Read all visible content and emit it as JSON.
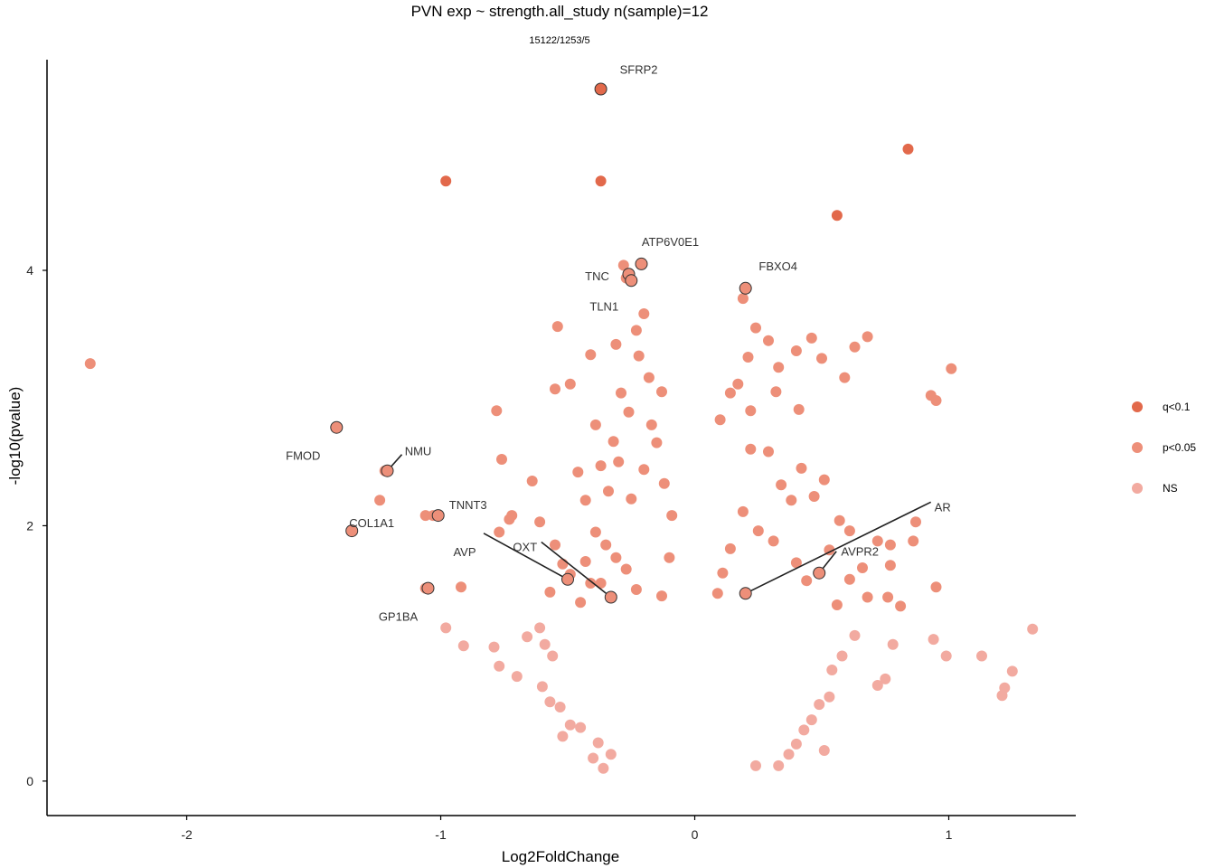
{
  "chart_data": {
    "type": "scatter",
    "title": "PVN exp ~ strength.all_study n(sample)=12",
    "subtitle": "15122/1253/5",
    "xlabel": "Log2FoldChange",
    "ylabel": "-log10(pvalue)",
    "xlim": [
      -2.55,
      1.5
    ],
    "ylim": [
      -0.27,
      5.65
    ],
    "x_ticks": [
      {
        "value": -2,
        "label": "-2"
      },
      {
        "value": -1,
        "label": "-1"
      },
      {
        "value": 0,
        "label": "0"
      },
      {
        "value": 1,
        "label": "1"
      }
    ],
    "y_ticks": [
      {
        "value": 0,
        "label": "0"
      },
      {
        "value": 2,
        "label": "2"
      },
      {
        "value": 4,
        "label": "4"
      }
    ],
    "grid": false,
    "legend_position": "right",
    "legend": [
      {
        "label": "q<0.1",
        "color": "#e2694b"
      },
      {
        "label": "p<0.05",
        "color": "#ed8f79"
      },
      {
        "label": "NS",
        "color": "#f2aaa0"
      }
    ],
    "series": [
      {
        "name": "q<0.1",
        "color": "#e2694b",
        "points": [
          {
            "x": -0.37,
            "y": 5.42
          },
          {
            "x": -0.98,
            "y": 4.7
          },
          {
            "x": -0.37,
            "y": 4.7
          },
          {
            "x": 0.84,
            "y": 4.95
          },
          {
            "x": 0.56,
            "y": 4.43
          }
        ]
      },
      {
        "name": "p<0.05",
        "color": "#ed8f79",
        "points": [
          {
            "x": -2.38,
            "y": 3.27
          },
          {
            "x": -1.41,
            "y": 2.77
          },
          {
            "x": -1.22,
            "y": 2.43
          },
          {
            "x": -1.24,
            "y": 2.2
          },
          {
            "x": -1.35,
            "y": 1.96
          },
          {
            "x": -1.06,
            "y": 2.08
          },
          {
            "x": -1.03,
            "y": 2.08
          },
          {
            "x": -1.06,
            "y": 1.51
          },
          {
            "x": -0.92,
            "y": 1.52
          },
          {
            "x": -0.78,
            "y": 2.9
          },
          {
            "x": -0.77,
            "y": 1.95
          },
          {
            "x": -0.73,
            "y": 2.05
          },
          {
            "x": -0.76,
            "y": 2.52
          },
          {
            "x": -0.72,
            "y": 2.08
          },
          {
            "x": -0.64,
            "y": 2.35
          },
          {
            "x": -0.61,
            "y": 2.03
          },
          {
            "x": -0.55,
            "y": 1.85
          },
          {
            "x": -0.52,
            "y": 1.7
          },
          {
            "x": -0.57,
            "y": 1.48
          },
          {
            "x": -0.49,
            "y": 1.62
          },
          {
            "x": -0.45,
            "y": 1.4
          },
          {
            "x": -0.41,
            "y": 1.55
          },
          {
            "x": -0.43,
            "y": 2.2
          },
          {
            "x": -0.46,
            "y": 2.42
          },
          {
            "x": -0.55,
            "y": 3.07
          },
          {
            "x": -0.54,
            "y": 3.56
          },
          {
            "x": -0.49,
            "y": 3.11
          },
          {
            "x": -0.41,
            "y": 3.34
          },
          {
            "x": -0.39,
            "y": 2.79
          },
          {
            "x": -0.31,
            "y": 3.42
          },
          {
            "x": -0.28,
            "y": 4.04
          },
          {
            "x": -0.27,
            "y": 3.94
          },
          {
            "x": -0.23,
            "y": 3.53
          },
          {
            "x": -0.2,
            "y": 3.66
          },
          {
            "x": -0.22,
            "y": 3.33
          },
          {
            "x": -0.18,
            "y": 3.16
          },
          {
            "x": -0.17,
            "y": 2.79
          },
          {
            "x": -0.13,
            "y": 3.05
          },
          {
            "x": -0.29,
            "y": 3.04
          },
          {
            "x": -0.32,
            "y": 2.66
          },
          {
            "x": -0.26,
            "y": 2.89
          },
          {
            "x": -0.3,
            "y": 2.5
          },
          {
            "x": -0.37,
            "y": 2.47
          },
          {
            "x": -0.34,
            "y": 2.27
          },
          {
            "x": -0.25,
            "y": 2.21
          },
          {
            "x": -0.2,
            "y": 2.44
          },
          {
            "x": -0.39,
            "y": 1.95
          },
          {
            "x": -0.35,
            "y": 1.85
          },
          {
            "x": -0.31,
            "y": 1.75
          },
          {
            "x": -0.27,
            "y": 1.66
          },
          {
            "x": -0.37,
            "y": 1.55
          },
          {
            "x": -0.43,
            "y": 1.72
          },
          {
            "x": -0.23,
            "y": 1.5
          },
          {
            "x": 0.19,
            "y": 3.78
          },
          {
            "x": 0.24,
            "y": 3.55
          },
          {
            "x": 0.29,
            "y": 3.45
          },
          {
            "x": 0.21,
            "y": 3.32
          },
          {
            "x": 0.33,
            "y": 3.24
          },
          {
            "x": 0.4,
            "y": 3.37
          },
          {
            "x": 0.46,
            "y": 3.47
          },
          {
            "x": 0.5,
            "y": 3.31
          },
          {
            "x": 0.59,
            "y": 3.16
          },
          {
            "x": 0.63,
            "y": 3.4
          },
          {
            "x": 0.68,
            "y": 3.48
          },
          {
            "x": 1.01,
            "y": 3.23
          },
          {
            "x": 0.93,
            "y": 3.02
          },
          {
            "x": 0.95,
            "y": 2.98
          },
          {
            "x": 0.17,
            "y": 3.11
          },
          {
            "x": 0.14,
            "y": 3.04
          },
          {
            "x": 0.22,
            "y": 2.9
          },
          {
            "x": 0.32,
            "y": 3.05
          },
          {
            "x": 0.41,
            "y": 2.91
          },
          {
            "x": 0.1,
            "y": 2.83
          },
          {
            "x": 0.22,
            "y": 2.6
          },
          {
            "x": 0.29,
            "y": 2.58
          },
          {
            "x": 0.34,
            "y": 2.32
          },
          {
            "x": 0.38,
            "y": 2.2
          },
          {
            "x": 0.42,
            "y": 2.45
          },
          {
            "x": 0.51,
            "y": 2.36
          },
          {
            "x": 0.47,
            "y": 2.23
          },
          {
            "x": 0.57,
            "y": 2.04
          },
          {
            "x": 0.53,
            "y": 1.81
          },
          {
            "x": 0.61,
            "y": 1.96
          },
          {
            "x": 0.72,
            "y": 1.88
          },
          {
            "x": 0.66,
            "y": 1.67
          },
          {
            "x": 0.61,
            "y": 1.58
          },
          {
            "x": 0.77,
            "y": 1.85
          },
          {
            "x": 0.87,
            "y": 2.03
          },
          {
            "x": 0.86,
            "y": 1.88
          },
          {
            "x": 0.77,
            "y": 1.69
          },
          {
            "x": 0.95,
            "y": 1.52
          },
          {
            "x": 0.76,
            "y": 1.44
          },
          {
            "x": 0.81,
            "y": 1.37
          },
          {
            "x": 0.68,
            "y": 1.44
          },
          {
            "x": 0.56,
            "y": 1.38
          },
          {
            "x": 0.44,
            "y": 1.57
          },
          {
            "x": 0.4,
            "y": 1.71
          },
          {
            "x": 0.31,
            "y": 1.88
          },
          {
            "x": 0.25,
            "y": 1.96
          },
          {
            "x": 0.19,
            "y": 2.11
          },
          {
            "x": 0.14,
            "y": 1.82
          },
          {
            "x": 0.11,
            "y": 1.63
          },
          {
            "x": 0.09,
            "y": 1.47
          },
          {
            "x": -0.13,
            "y": 1.45
          },
          {
            "x": -0.1,
            "y": 1.75
          },
          {
            "x": -0.09,
            "y": 2.08
          },
          {
            "x": -0.12,
            "y": 2.33
          },
          {
            "x": -0.15,
            "y": 2.65
          }
        ]
      },
      {
        "name": "NS",
        "color": "#f2aaa0",
        "points": [
          {
            "x": -0.98,
            "y": 1.2
          },
          {
            "x": -0.91,
            "y": 1.06
          },
          {
            "x": -0.79,
            "y": 1.05
          },
          {
            "x": -0.77,
            "y": 0.9
          },
          {
            "x": -0.7,
            "y": 0.82
          },
          {
            "x": -0.66,
            "y": 1.13
          },
          {
            "x": -0.61,
            "y": 1.2
          },
          {
            "x": -0.59,
            "y": 1.07
          },
          {
            "x": -0.56,
            "y": 0.98
          },
          {
            "x": -0.6,
            "y": 0.74
          },
          {
            "x": -0.57,
            "y": 0.62
          },
          {
            "x": -0.53,
            "y": 0.58
          },
          {
            "x": -0.49,
            "y": 0.44
          },
          {
            "x": -0.52,
            "y": 0.35
          },
          {
            "x": -0.45,
            "y": 0.42
          },
          {
            "x": -0.38,
            "y": 0.3
          },
          {
            "x": -0.4,
            "y": 0.18
          },
          {
            "x": -0.36,
            "y": 0.1
          },
          {
            "x": 1.33,
            "y": 1.19
          },
          {
            "x": 1.13,
            "y": 0.98
          },
          {
            "x": 1.25,
            "y": 0.86
          },
          {
            "x": 1.22,
            "y": 0.73
          },
          {
            "x": 1.21,
            "y": 0.67
          },
          {
            "x": 0.99,
            "y": 0.98
          },
          {
            "x": 0.94,
            "y": 1.11
          },
          {
            "x": 0.78,
            "y": 1.07
          },
          {
            "x": 0.75,
            "y": 0.8
          },
          {
            "x": 0.72,
            "y": 0.75
          },
          {
            "x": 0.63,
            "y": 1.14
          },
          {
            "x": 0.58,
            "y": 0.98
          },
          {
            "x": 0.54,
            "y": 0.87
          },
          {
            "x": 0.53,
            "y": 0.66
          },
          {
            "x": 0.49,
            "y": 0.6
          },
          {
            "x": 0.46,
            "y": 0.48
          },
          {
            "x": 0.43,
            "y": 0.4
          },
          {
            "x": 0.4,
            "y": 0.29
          },
          {
            "x": 0.37,
            "y": 0.21
          },
          {
            "x": 0.33,
            "y": 0.12
          },
          {
            "x": 0.51,
            "y": 0.24
          },
          {
            "x": -0.33,
            "y": 0.21
          },
          {
            "x": 0.24,
            "y": 0.12
          }
        ]
      }
    ],
    "labeled_genes": [
      {
        "gene": "SFRP2",
        "x": -0.37,
        "y": 5.42
      },
      {
        "gene": "ATP6V0E1",
        "x": -0.21,
        "y": 4.05
      },
      {
        "gene": "TNC",
        "x": -0.26,
        "y": 3.97
      },
      {
        "gene": "TLN1",
        "x": -0.25,
        "y": 3.92
      },
      {
        "gene": "FBXO4",
        "x": 0.2,
        "y": 3.86
      },
      {
        "gene": "FMOD",
        "x": -1.41,
        "y": 2.77
      },
      {
        "gene": "NMU",
        "x": -1.21,
        "y": 2.43
      },
      {
        "gene": "TNNT3",
        "x": -1.01,
        "y": 2.08
      },
      {
        "gene": "COL1A1",
        "x": -1.35,
        "y": 1.96
      },
      {
        "gene": "AVP",
        "x": -0.5,
        "y": 1.58
      },
      {
        "gene": "OXT",
        "x": -0.33,
        "y": 1.44
      },
      {
        "gene": "GP1BA",
        "x": -1.05,
        "y": 1.51
      },
      {
        "gene": "AR",
        "x": 0.2,
        "y": 1.47
      },
      {
        "gene": "AVPR2",
        "x": 0.49,
        "y": 1.63
      }
    ]
  }
}
